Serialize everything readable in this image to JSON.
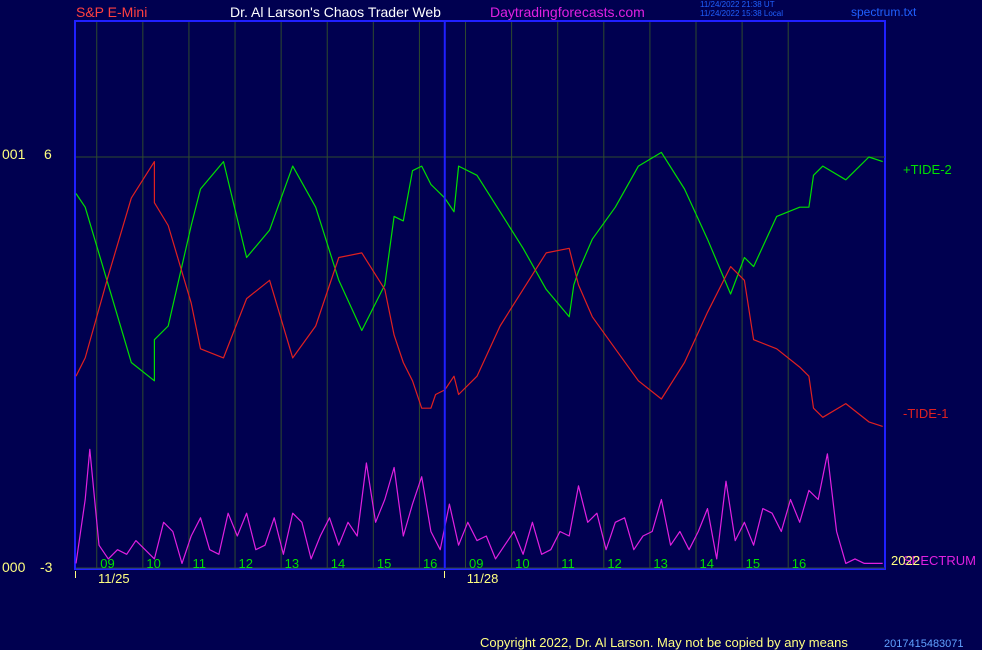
{
  "header": {
    "symbol": "S&P E-Mini",
    "site_title": "Dr. Al Larson's Chaos Trader Web",
    "site_url": "Daytradingforecasts.com",
    "timestamp_ut": "11/24/2022 21:38 UT",
    "timestamp_local": "11/24/2022 15:38 Local",
    "file_name": "spectrum.txt"
  },
  "footer": {
    "copyright": "Copyright 2022, Dr. Al Larson. May not be copied by any means",
    "stamp": "2017415483071"
  },
  "colors": {
    "background": "#000050",
    "frame": "#2020ff",
    "grid": "#2e4a2e",
    "tide_plus": "#00e000",
    "tide_minus": "#e02020",
    "spectrum": "#e020e0"
  },
  "chart_data": {
    "type": "line",
    "y_axis": {
      "ylim": [
        -3,
        6
      ],
      "ticks": [
        {
          "value": 6,
          "label": "6",
          "prefix": "001"
        },
        {
          "value": -3,
          "label": "-3",
          "prefix": "000"
        }
      ]
    },
    "x_axis": {
      "xlim": [
        8.3,
        25.85
      ],
      "hour_ticks": [
        {
          "x": 9,
          "label": "09"
        },
        {
          "x": 10,
          "label": "10"
        },
        {
          "x": 11,
          "label": "11"
        },
        {
          "x": 12,
          "label": "12"
        },
        {
          "x": 13,
          "label": "13"
        },
        {
          "x": 14,
          "label": "14"
        },
        {
          "x": 15,
          "label": "15"
        },
        {
          "x": 16,
          "label": "16"
        },
        {
          "x": 17,
          "label": "09"
        },
        {
          "x": 18,
          "label": "10"
        },
        {
          "x": 19,
          "label": "11"
        },
        {
          "x": 20,
          "label": "12"
        },
        {
          "x": 21,
          "label": "13"
        },
        {
          "x": 22,
          "label": "14"
        },
        {
          "x": 23,
          "label": "15"
        },
        {
          "x": 24,
          "label": "16"
        }
      ],
      "date_ticks": [
        {
          "x": 8.3,
          "label": "11/25"
        },
        {
          "x": 16.3,
          "label": "11/28"
        }
      ],
      "session_divider_x": 16.3,
      "year_label": "2022"
    },
    "grid": true,
    "series": [
      {
        "name": "+TIDE-2",
        "color": "#00e000",
        "x": [
          8.3,
          8.5,
          9.0,
          9.5,
          10.0,
          10.0,
          10.3,
          10.8,
          11.0,
          11.5,
          12.0,
          12.5,
          13.0,
          13.5,
          14.0,
          14.5,
          15.0,
          15.2,
          15.4,
          15.6,
          15.8,
          16.0,
          16.1,
          16.3,
          16.5,
          16.6,
          17.0,
          17.5,
          18.0,
          18.5,
          19.0,
          19.1,
          19.2,
          19.5,
          20.0,
          20.5,
          21.0,
          21.5,
          22.0,
          22.5,
          22.8,
          23.0,
          23.5,
          24.0,
          24.2,
          24.3,
          24.5,
          25.0,
          25.5,
          25.8
        ],
        "y": [
          5.2,
          4.9,
          3.2,
          1.5,
          1.1,
          2.0,
          2.3,
          4.5,
          5.3,
          5.9,
          3.8,
          4.4,
          5.8,
          4.9,
          3.3,
          2.2,
          3.2,
          4.7,
          4.6,
          5.7,
          5.8,
          5.4,
          5.3,
          5.1,
          4.8,
          5.8,
          5.6,
          4.8,
          4.0,
          3.1,
          2.5,
          3.2,
          3.5,
          4.2,
          4.9,
          5.8,
          6.1,
          5.3,
          4.2,
          3.0,
          3.8,
          3.6,
          4.7,
          4.9,
          4.9,
          5.6,
          5.8,
          5.5,
          6.0,
          5.9
        ]
      },
      {
        "name": "-TIDE-1",
        "color": "#e02020",
        "x": [
          8.3,
          8.5,
          9.0,
          9.5,
          10.0,
          10.0,
          10.3,
          10.8,
          11.0,
          11.5,
          12.0,
          12.5,
          13.0,
          13.5,
          14.0,
          14.5,
          15.0,
          15.2,
          15.4,
          15.6,
          15.8,
          16.0,
          16.1,
          16.3,
          16.5,
          16.6,
          17.0,
          17.5,
          18.0,
          18.5,
          19.0,
          19.1,
          19.2,
          19.5,
          20.0,
          20.5,
          21.0,
          21.5,
          22.0,
          22.5,
          22.8,
          23.0,
          23.5,
          24.0,
          24.2,
          24.3,
          24.5,
          25.0,
          25.5,
          25.8
        ],
        "y": [
          1.2,
          1.6,
          3.4,
          5.1,
          5.9,
          5.0,
          4.5,
          2.8,
          1.8,
          1.6,
          2.9,
          3.3,
          1.6,
          2.3,
          3.8,
          3.9,
          3.1,
          2.1,
          1.5,
          1.1,
          0.5,
          0.5,
          0.8,
          0.9,
          1.2,
          0.8,
          1.2,
          2.3,
          3.1,
          3.9,
          4.0,
          3.6,
          3.2,
          2.5,
          1.8,
          1.1,
          0.7,
          1.5,
          2.6,
          3.6,
          3.3,
          2.0,
          1.8,
          1.4,
          1.2,
          0.5,
          0.3,
          0.6,
          0.2,
          0.1
        ]
      },
      {
        "name": "SPECTRUM",
        "color": "#e020e0",
        "x": [
          8.3,
          8.5,
          8.6,
          8.8,
          9.0,
          9.2,
          9.4,
          9.6,
          9.8,
          10.0,
          10.2,
          10.4,
          10.6,
          10.8,
          11.0,
          11.2,
          11.4,
          11.6,
          11.8,
          12.0,
          12.2,
          12.4,
          12.6,
          12.8,
          13.0,
          13.2,
          13.4,
          13.6,
          13.8,
          14.0,
          14.2,
          14.4,
          14.6,
          14.8,
          15.0,
          15.2,
          15.4,
          15.6,
          15.8,
          16.0,
          16.2,
          16.4,
          16.6,
          16.8,
          17.0,
          17.2,
          17.4,
          17.6,
          17.8,
          18.0,
          18.2,
          18.4,
          18.6,
          18.8,
          19.0,
          19.2,
          19.4,
          19.6,
          19.8,
          20.0,
          20.2,
          20.4,
          20.6,
          20.8,
          21.0,
          21.2,
          21.4,
          21.6,
          21.8,
          22.0,
          22.2,
          22.4,
          22.6,
          22.8,
          23.0,
          23.2,
          23.4,
          23.6,
          23.8,
          24.0,
          24.2,
          24.4,
          24.6,
          24.8,
          25.0,
          25.2,
          25.4,
          25.6,
          25.8
        ],
        "y": [
          -2.9,
          -1.5,
          -0.4,
          -2.5,
          -2.8,
          -2.6,
          -2.7,
          -2.4,
          -2.6,
          -2.8,
          -2.0,
          -2.2,
          -2.9,
          -2.3,
          -1.9,
          -2.6,
          -2.7,
          -1.8,
          -2.3,
          -1.8,
          -2.6,
          -2.5,
          -1.9,
          -2.7,
          -1.8,
          -2.0,
          -2.8,
          -2.3,
          -1.9,
          -2.5,
          -2.0,
          -2.3,
          -0.7,
          -2.0,
          -1.5,
          -0.8,
          -2.3,
          -1.6,
          -1.0,
          -2.2,
          -2.6,
          -1.6,
          -2.5,
          -2.0,
          -2.4,
          -2.3,
          -2.8,
          -2.5,
          -2.2,
          -2.7,
          -2.0,
          -2.7,
          -2.6,
          -2.2,
          -2.3,
          -1.2,
          -2.0,
          -1.8,
          -2.6,
          -2.0,
          -1.9,
          -2.6,
          -2.3,
          -2.2,
          -1.5,
          -2.5,
          -2.2,
          -2.6,
          -2.2,
          -1.7,
          -2.8,
          -1.1,
          -2.4,
          -2.0,
          -2.5,
          -1.7,
          -1.8,
          -2.2,
          -1.5,
          -2.0,
          -1.3,
          -1.5,
          -0.5,
          -2.2,
          -2.9,
          -2.8,
          -2.9,
          -2.9,
          -2.9
        ]
      }
    ]
  }
}
